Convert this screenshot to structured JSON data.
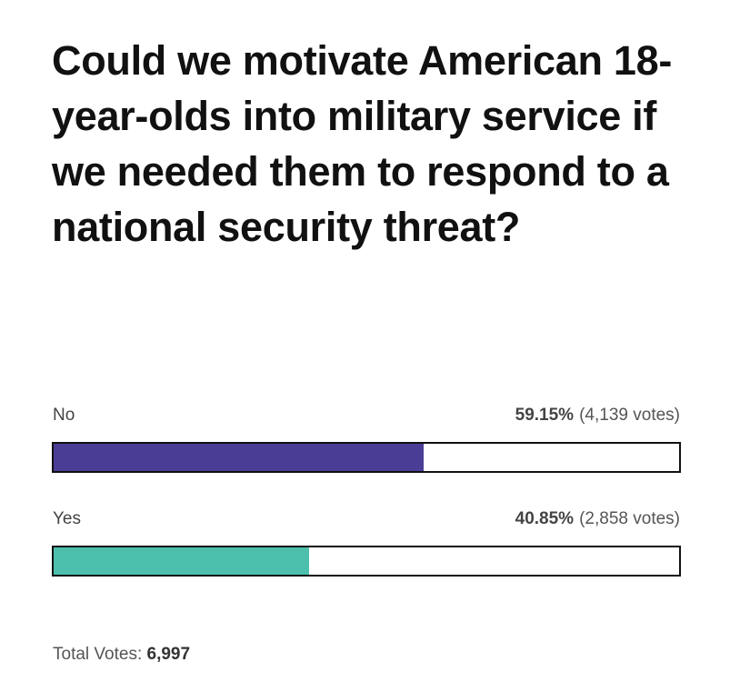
{
  "poll": {
    "question": "Could we motivate American 18-year-olds into military service if we needed them to respond to a national security threat?",
    "total_label": "Total Votes:",
    "total_value": "6,997"
  },
  "options": [
    {
      "label": "No",
      "percent_text": "59.15%",
      "votes_text": "(4,139 votes)",
      "color": "#4a3d96"
    },
    {
      "label": "Yes",
      "percent_text": "40.85%",
      "votes_text": "(2,858 votes)",
      "color": "#4dbfad"
    }
  ],
  "chart_data": {
    "type": "bar",
    "orientation": "horizontal",
    "title": "Could we motivate American 18-year-olds into military service if we needed them to respond to a national security threat?",
    "categories": [
      "No",
      "Yes"
    ],
    "values": [
      59.15,
      40.85
    ],
    "votes": [
      4139,
      2858
    ],
    "total_votes": 6997,
    "unit": "%",
    "xlim": [
      0,
      100
    ],
    "colors": [
      "#4a3d96",
      "#4dbfad"
    ],
    "grid": false,
    "legend": "none"
  }
}
